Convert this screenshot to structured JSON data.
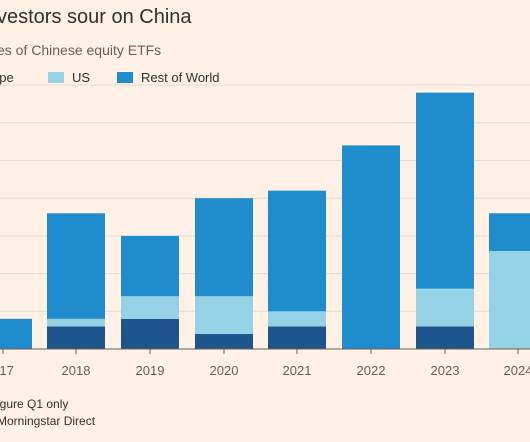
{
  "header": {
    "title": "vestors sour on China",
    "subtitle": "es of Chinese equity ETFs"
  },
  "legend": [
    {
      "label": "ope",
      "color": "#1e558c"
    },
    {
      "label": "US",
      "color": "#96d2e6"
    },
    {
      "label": "Rest of World",
      "color": "#1e8ccd"
    }
  ],
  "footer": {
    "note": "igure Q1 only",
    "source": "Morningstar Direct"
  },
  "chart_data": {
    "type": "bar",
    "stacked": true,
    "categories": [
      "017",
      "2018",
      "2019",
      "2020",
      "2021",
      "2022",
      "2023",
      "2024"
    ],
    "series": [
      {
        "name": "ope",
        "color": "#1e558c",
        "values": [
          0,
          6,
          8,
          4,
          6,
          0,
          6,
          0
        ]
      },
      {
        "name": "US",
        "color": "#96d2e6",
        "values": [
          0,
          2,
          6,
          10,
          4,
          0,
          10,
          26
        ]
      },
      {
        "name": "Rest of World",
        "color": "#1e8ccd",
        "values": [
          8,
          28,
          16,
          26,
          32,
          54,
          52,
          10
        ]
      }
    ],
    "ylim": [
      0,
      70
    ],
    "grid": true,
    "legend_position": "top-left"
  }
}
